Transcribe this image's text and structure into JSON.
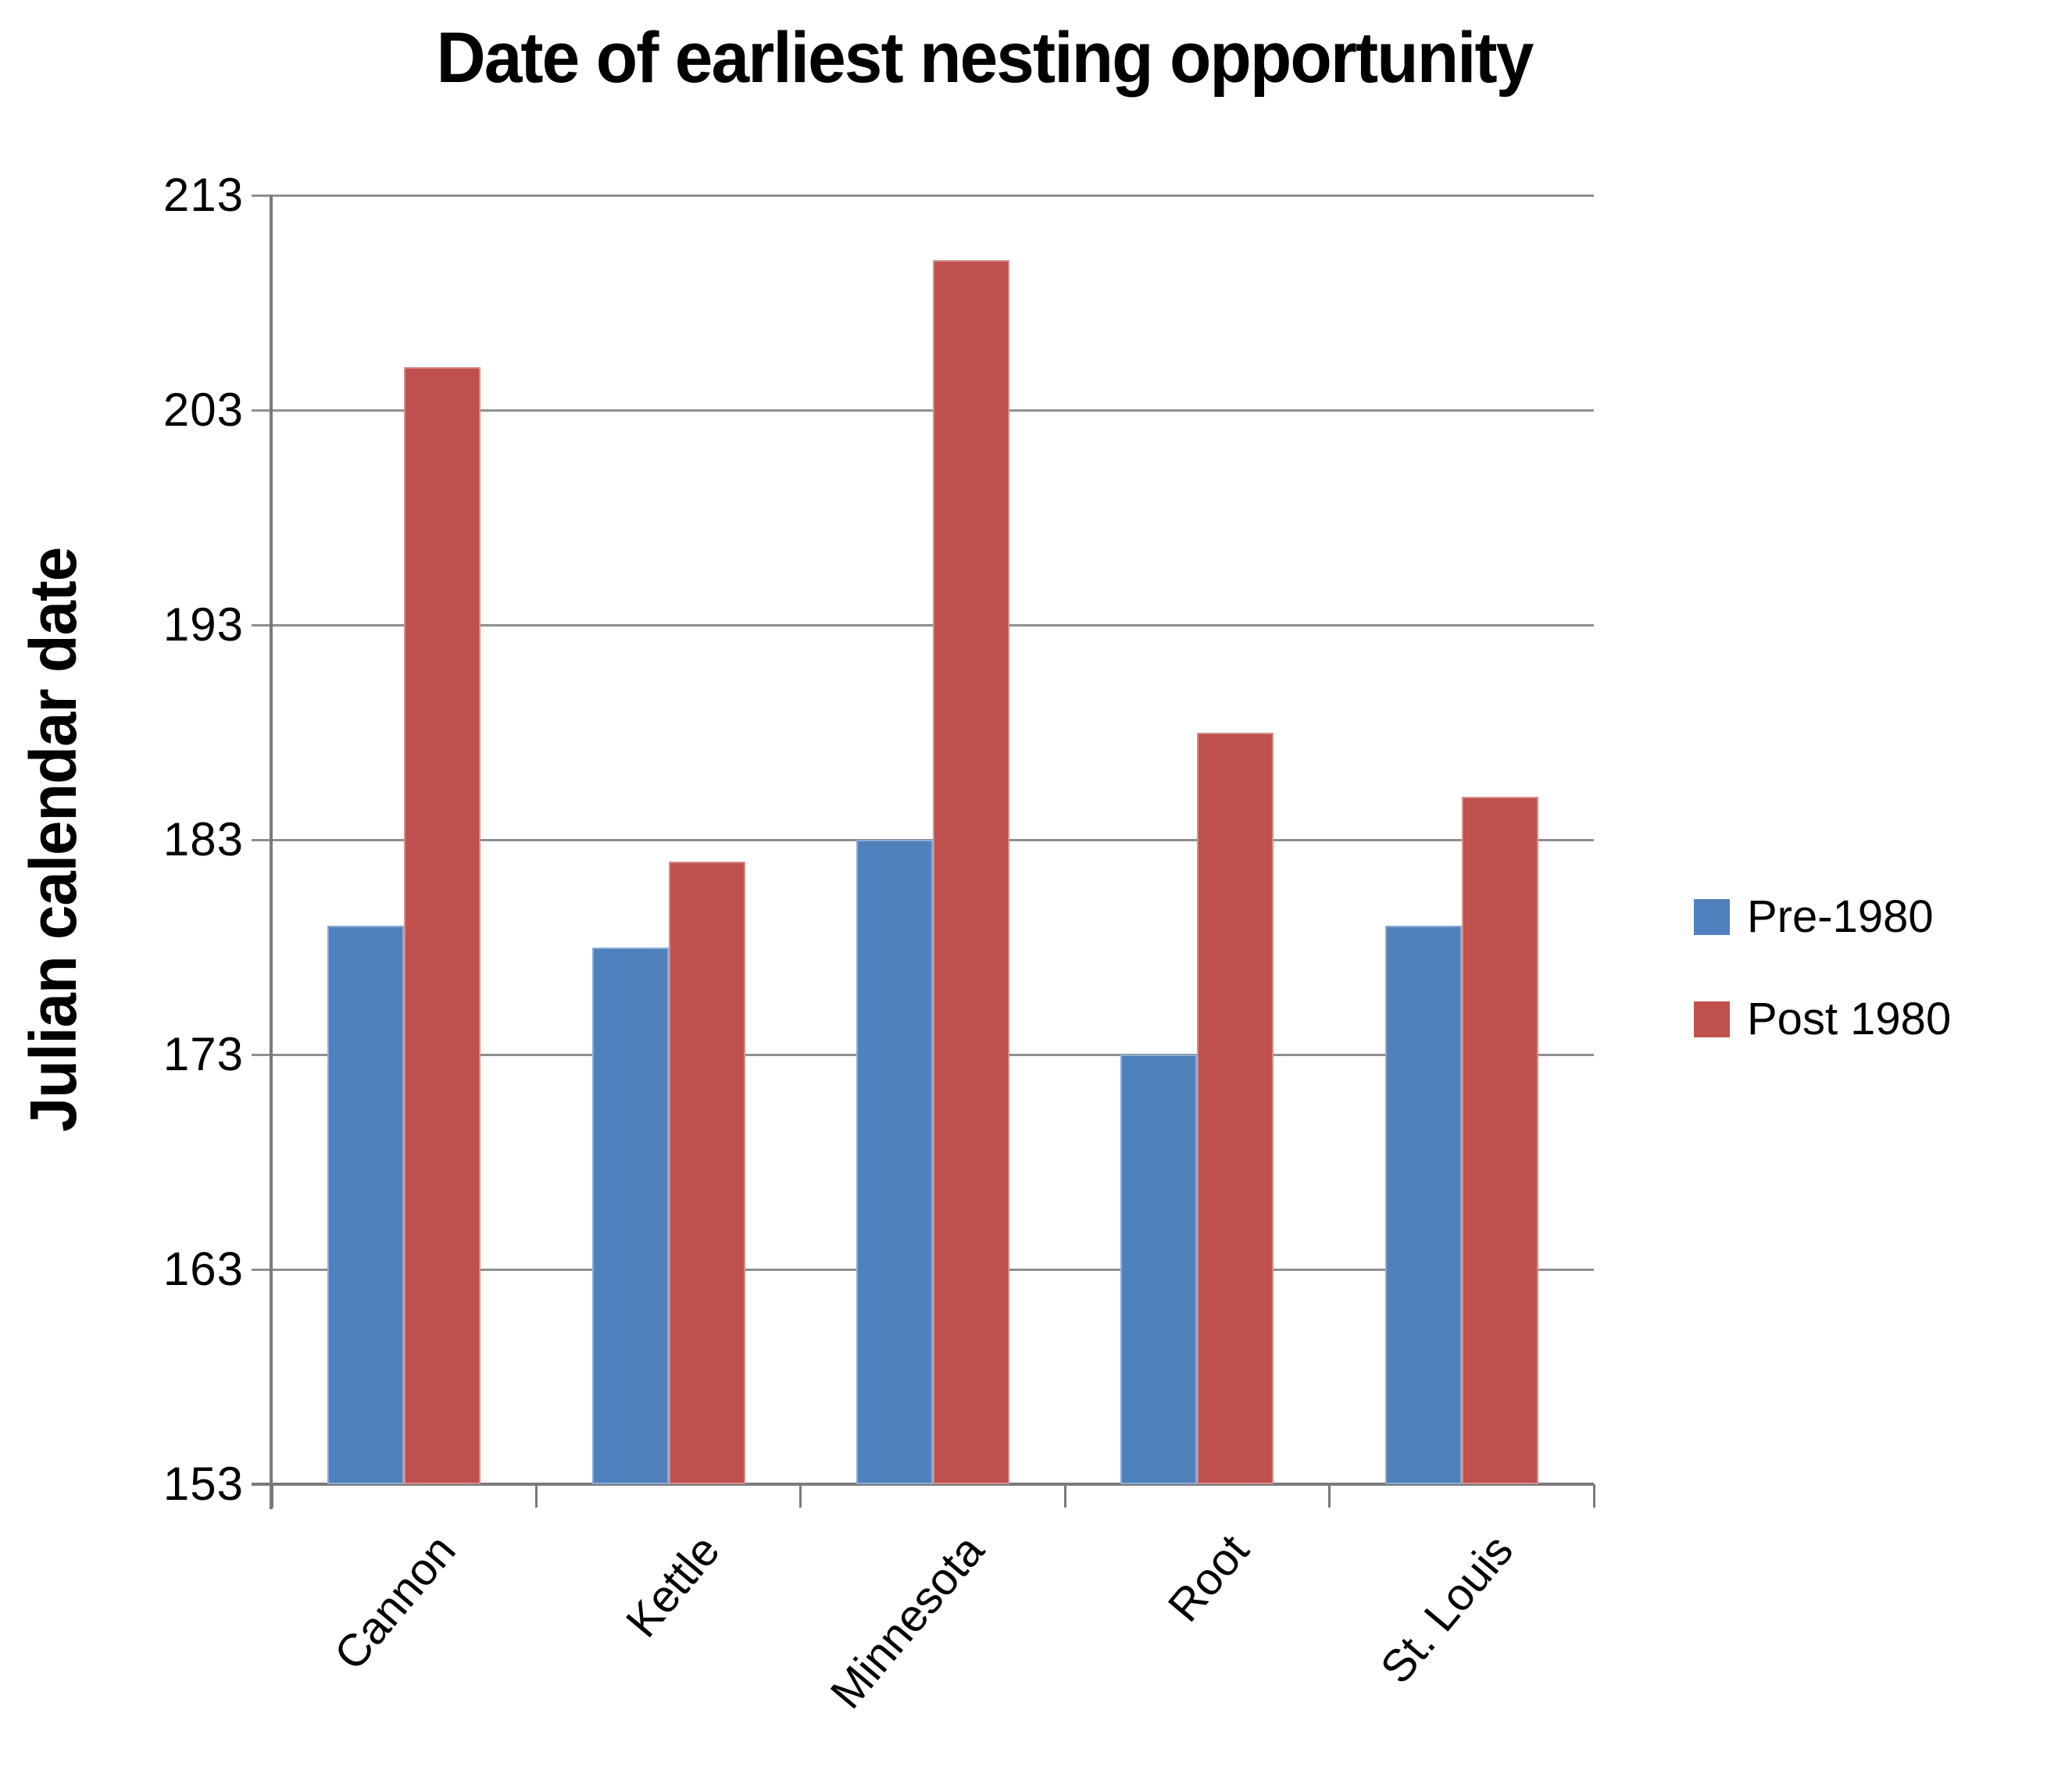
{
  "title": "Date of earliest nesting opportunity",
  "chart_data": {
    "type": "bar",
    "title": "Date of earliest nesting opportunity",
    "xlabel": "",
    "ylabel": "Julian calendar date",
    "categories": [
      "Cannon",
      "Kettle",
      "Minnesota",
      "Root",
      "St. Louis"
    ],
    "series": [
      {
        "name": "Pre-1980",
        "color": "#4F81BD",
        "values": [
          179,
          178,
          183,
          173,
          179
        ]
      },
      {
        "name": "Post 1980",
        "color": "#C0504D",
        "values": [
          205,
          182,
          210,
          188,
          185
        ]
      }
    ],
    "ylim": [
      153,
      213
    ],
    "ytick_step": 10,
    "yticks": [
      213,
      203,
      193,
      183,
      173,
      163,
      153
    ],
    "grid": true,
    "legend_position": "right",
    "gridline_color": "#8f8f8f",
    "axis_color": "#7a7a7a",
    "background_color": "#ffffff",
    "text_color": "#000000"
  }
}
